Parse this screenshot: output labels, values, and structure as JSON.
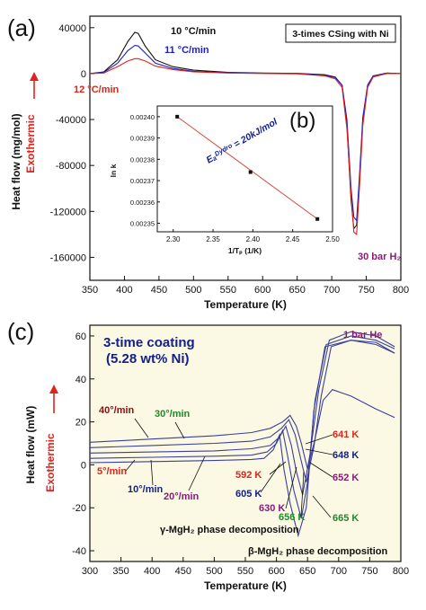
{
  "colors": {
    "black": "#111111",
    "blue": "#1a1fc8",
    "red": "#e0231c",
    "purple": "#8a1a7a",
    "green": "#1e8a2a",
    "darkred": "#8b1010",
    "navy": "#14208a",
    "panel_c_bg": "#fbf8e3",
    "fit_line": "#d14a3a"
  },
  "chart_data": [
    {
      "id": "a",
      "type": "line",
      "panel_label": "(a)",
      "xlabel": "Temperature (K)",
      "ylabel": "Heat flow (mg/mol)",
      "exo_label": "Exothermic",
      "xlim": [
        350,
        800
      ],
      "ylim": [
        -180000,
        50000
      ],
      "xticks": [
        350,
        400,
        450,
        500,
        550,
        600,
        650,
        700,
        750,
        800
      ],
      "yticks": [
        40000,
        0,
        -40000,
        -80000,
        -120000,
        -160000
      ],
      "yticklabels": [
        "40000",
        "0",
        "-40000",
        "-80000",
        "-120000",
        "-160000"
      ],
      "legend_box": "3-times CSing with Ni",
      "pressure_note": "30 bar H₂",
      "series": [
        {
          "name": "10 °C/min",
          "color": "black",
          "x": [
            350,
            370,
            390,
            405,
            415,
            420,
            430,
            445,
            470,
            500,
            550,
            600,
            650,
            690,
            705,
            715,
            722,
            728,
            732,
            736,
            740,
            745,
            752,
            760,
            780,
            800
          ],
          "y": [
            0,
            1500,
            12000,
            28000,
            36000,
            35000,
            24000,
            12000,
            6000,
            3000,
            1000,
            500,
            200,
            -1000,
            -3000,
            -10000,
            -45000,
            -110000,
            -135000,
            -132000,
            -95000,
            -40000,
            -10000,
            -2000,
            500,
            0
          ]
        },
        {
          "name": "11 °C/min",
          "color": "blue",
          "x": [
            350,
            370,
            390,
            405,
            415,
            420,
            430,
            445,
            470,
            500,
            550,
            600,
            650,
            690,
            705,
            715,
            722,
            728,
            732,
            736,
            740,
            745,
            752,
            760,
            780,
            800
          ],
          "y": [
            0,
            1000,
            9000,
            20000,
            24500,
            24000,
            18000,
            9000,
            4500,
            2000,
            700,
            300,
            0,
            -1500,
            -3500,
            -10000,
            -40000,
            -100000,
            -125000,
            -128000,
            -90000,
            -38000,
            -10000,
            -2000,
            300,
            0
          ]
        },
        {
          "name": "12 °C/min",
          "color": "red",
          "x": [
            350,
            370,
            390,
            405,
            415,
            420,
            430,
            445,
            470,
            500,
            550,
            600,
            650,
            690,
            705,
            715,
            722,
            728,
            732,
            736,
            740,
            745,
            752,
            760,
            780,
            800
          ],
          "y": [
            0,
            500,
            6000,
            11000,
            13000,
            13000,
            11000,
            6500,
            3500,
            1500,
            500,
            100,
            -200,
            -2000,
            -4500,
            -12000,
            -48000,
            -105000,
            -138000,
            -140000,
            -100000,
            -45000,
            -12000,
            -3000,
            0,
            0
          ]
        }
      ]
    },
    {
      "id": "b",
      "type": "scatter",
      "panel_label": "(b)",
      "xlabel": "1/Tₚ (1/K)",
      "ylabel": "ln k",
      "xlim": [
        2.28,
        2.5
      ],
      "ylim": [
        0.002346,
        0.002405
      ],
      "xticks": [
        2.3,
        2.35,
        2.4,
        2.45,
        2.5
      ],
      "xticklabels": [
        "2.30",
        "2.35",
        "2.40",
        "2.45",
        "2.50"
      ],
      "yticks": [
        0.0024,
        0.00239,
        0.00238,
        0.00237,
        0.00236,
        0.00235
      ],
      "yticklabels": [
        "0.00240",
        "0.00239",
        "0.00238",
        "0.00237",
        "0.00236",
        "0.00235"
      ],
      "fit_text": "Eₐᴰʸᵈʳᵒ = 20kJ/mol",
      "points": {
        "x": [
          2.305,
          2.397,
          2.481
        ],
        "y": [
          0.0024,
          0.002374,
          0.002352
        ]
      }
    },
    {
      "id": "c",
      "type": "line",
      "panel_label": "(c)",
      "xlabel": "Temperature (K)",
      "ylabel": "Heat flow (mW)",
      "exo_label": "Exothermic",
      "xlim": [
        300,
        800
      ],
      "ylim": [
        -45,
        65
      ],
      "xticks": [
        300,
        350,
        400,
        450,
        500,
        550,
        600,
        650,
        700,
        750,
        800
      ],
      "yticks": [
        60,
        40,
        20,
        0,
        -20,
        -40
      ],
      "title_line1": "3-time coating",
      "title_line2": "(5.28 wt% Ni)",
      "gas_note": "1 bar He",
      "phase_gamma": "γ-MgH₂ phase decomposition",
      "phase_beta": "β-MgH₂ phase decomposition",
      "rate_labels": [
        "40°/min",
        "30°/min",
        "5°/min",
        "10°/min",
        "20°/min"
      ],
      "temp_labels": [
        "641 K",
        "648 K",
        "652 K",
        "592 K",
        "605 K",
        "630 K",
        "656 K",
        "665 K"
      ],
      "series": [
        {
          "name": "40°/min",
          "x": [
            300,
            400,
            500,
            560,
            590,
            610,
            622,
            632,
            640,
            650,
            662,
            675,
            690,
            720,
            760,
            790
          ],
          "y": [
            10.5,
            12,
            13.5,
            15,
            17,
            20,
            23,
            18,
            10,
            -2,
            12,
            30,
            35,
            32,
            26,
            22
          ]
        },
        {
          "name": "30°/min",
          "x": [
            300,
            400,
            500,
            560,
            590,
            608,
            620,
            630,
            638,
            648,
            660,
            672,
            688,
            720,
            760,
            790
          ],
          "y": [
            8,
            9,
            10,
            11,
            13,
            17,
            21,
            14,
            4,
            -8,
            8,
            32,
            55,
            58,
            56,
            52
          ]
        },
        {
          "name": "20°/min",
          "x": [
            300,
            400,
            500,
            560,
            590,
            605,
            615,
            624,
            632,
            642,
            654,
            668,
            685,
            720,
            760,
            790
          ],
          "y": [
            5.5,
            6,
            6.5,
            7.5,
            9,
            13,
            18,
            9,
            -3,
            -14,
            5,
            35,
            58,
            62,
            60,
            55
          ]
        },
        {
          "name": "10°/min",
          "x": [
            300,
            400,
            500,
            560,
            585,
            600,
            610,
            618,
            628,
            640,
            650,
            662,
            680,
            720,
            760,
            790
          ],
          "y": [
            3,
            3.5,
            4,
            4.5,
            6,
            10,
            16,
            4,
            -12,
            -25,
            -8,
            30,
            56,
            60,
            58,
            54
          ]
        },
        {
          "name": "5°/min",
          "x": [
            300,
            400,
            500,
            560,
            580,
            595,
            605,
            612,
            622,
            635,
            648,
            660,
            678,
            720,
            760,
            790
          ],
          "y": [
            1,
            1.5,
            2,
            2.5,
            3,
            7,
            14,
            -2,
            -18,
            -33,
            -20,
            25,
            55,
            58,
            57,
            52
          ]
        }
      ]
    }
  ]
}
